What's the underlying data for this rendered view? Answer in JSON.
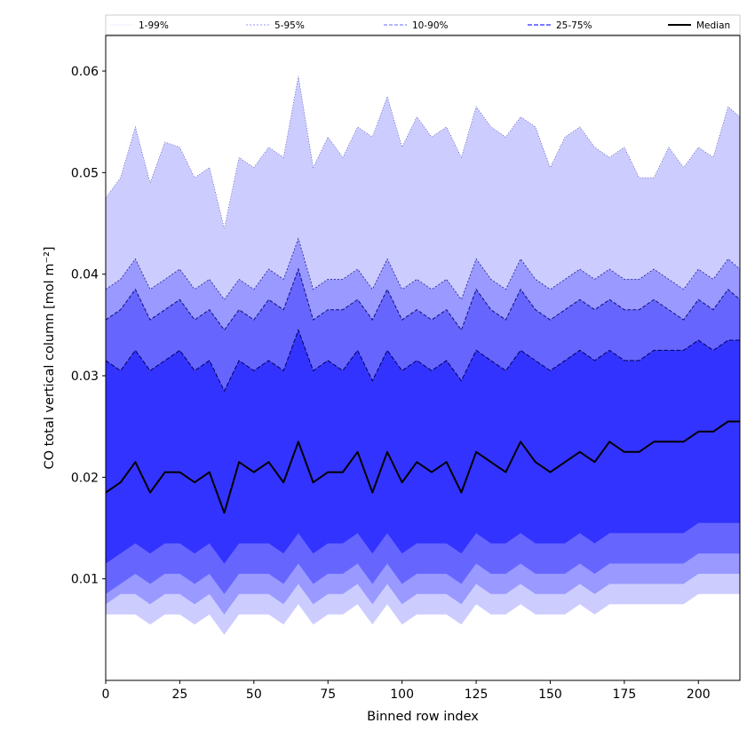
{
  "chart_data": {
    "type": "area",
    "title": "",
    "xlabel": "Binned row index",
    "ylabel": "CO total vertical column [mol m⁻²]",
    "xlim": [
      0,
      214
    ],
    "ylim": [
      0.0,
      0.0635
    ],
    "x_ticks": [
      0,
      25,
      50,
      75,
      100,
      125,
      150,
      175,
      200
    ],
    "y_ticks": [
      0.01,
      0.02,
      0.03,
      0.04,
      0.05,
      0.06
    ],
    "y_tick_labels": [
      "0.01",
      "0.02",
      "0.03",
      "0.04",
      "0.05",
      "0.06"
    ],
    "grid": false,
    "legend_position": "top, spanning full width",
    "legend": [
      {
        "label": "1-99%",
        "style": "dotted-thin",
        "color": "#c8c8ff"
      },
      {
        "label": "5-95%",
        "style": "dotted",
        "color": "#9696ff"
      },
      {
        "label": "10-90%",
        "style": "dashed",
        "color": "#6a6aff"
      },
      {
        "label": "25-75%",
        "style": "dashed",
        "color": "#2a2aff"
      },
      {
        "label": "Median",
        "style": "solid",
        "color": "#000000"
      }
    ],
    "colors": {
      "band_1_99": "#ccccff",
      "band_5_95": "#9999ff",
      "band_10_90": "#6666ff",
      "band_25_75": "#3333ff",
      "edge_upper": "#000080",
      "median": "#000000"
    },
    "x": [
      0,
      5,
      10,
      15,
      20,
      25,
      30,
      35,
      40,
      45,
      50,
      55,
      60,
      65,
      70,
      75,
      80,
      85,
      90,
      95,
      100,
      105,
      110,
      115,
      120,
      125,
      130,
      135,
      140,
      145,
      150,
      155,
      160,
      165,
      170,
      175,
      180,
      185,
      190,
      195,
      200,
      205,
      210,
      214
    ],
    "series": [
      {
        "name": "1-99%",
        "bound": "upper",
        "values": [
          0.0475,
          0.0495,
          0.0545,
          0.049,
          0.053,
          0.0525,
          0.0495,
          0.0505,
          0.0445,
          0.0515,
          0.0505,
          0.0525,
          0.0515,
          0.0595,
          0.0505,
          0.0535,
          0.0515,
          0.0545,
          0.0535,
          0.0575,
          0.0525,
          0.0555,
          0.0535,
          0.0545,
          0.0515,
          0.0565,
          0.0545,
          0.0535,
          0.0555,
          0.0545,
          0.0505,
          0.0535,
          0.0545,
          0.0525,
          0.0515,
          0.0525,
          0.0495,
          0.0495,
          0.0525,
          0.0505,
          0.0525,
          0.0515,
          0.0565,
          0.0555
        ]
      },
      {
        "name": "5-95%",
        "bound": "upper",
        "values": [
          0.0385,
          0.0395,
          0.0415,
          0.0385,
          0.0395,
          0.0405,
          0.0385,
          0.0395,
          0.0375,
          0.0395,
          0.0385,
          0.0405,
          0.0395,
          0.0435,
          0.0385,
          0.0395,
          0.0395,
          0.0405,
          0.0385,
          0.0415,
          0.0385,
          0.0395,
          0.0385,
          0.0395,
          0.0375,
          0.0415,
          0.0395,
          0.0385,
          0.0415,
          0.0395,
          0.0385,
          0.0395,
          0.0405,
          0.0395,
          0.0405,
          0.0395,
          0.0395,
          0.0405,
          0.0395,
          0.0385,
          0.0405,
          0.0395,
          0.0415,
          0.0405
        ]
      },
      {
        "name": "10-90%",
        "bound": "upper",
        "values": [
          0.0355,
          0.0365,
          0.0385,
          0.0355,
          0.0365,
          0.0375,
          0.0355,
          0.0365,
          0.0345,
          0.0365,
          0.0355,
          0.0375,
          0.0365,
          0.0405,
          0.0355,
          0.0365,
          0.0365,
          0.0375,
          0.0355,
          0.0385,
          0.0355,
          0.0365,
          0.0355,
          0.0365,
          0.0345,
          0.0385,
          0.0365,
          0.0355,
          0.0385,
          0.0365,
          0.0355,
          0.0365,
          0.0375,
          0.0365,
          0.0375,
          0.0365,
          0.0365,
          0.0375,
          0.0365,
          0.0355,
          0.0375,
          0.0365,
          0.0385,
          0.0375
        ]
      },
      {
        "name": "25-75%",
        "bound": "upper",
        "values": [
          0.0315,
          0.0305,
          0.0325,
          0.0305,
          0.0315,
          0.0325,
          0.0305,
          0.0315,
          0.0285,
          0.0315,
          0.0305,
          0.0315,
          0.0305,
          0.0345,
          0.0305,
          0.0315,
          0.0305,
          0.0325,
          0.0295,
          0.0325,
          0.0305,
          0.0315,
          0.0305,
          0.0315,
          0.0295,
          0.0325,
          0.0315,
          0.0305,
          0.0325,
          0.0315,
          0.0305,
          0.0315,
          0.0325,
          0.0315,
          0.0325,
          0.0315,
          0.0315,
          0.0325,
          0.0325,
          0.0325,
          0.0335,
          0.0325,
          0.0335,
          0.0335
        ]
      },
      {
        "name": "Median",
        "bound": "center",
        "values": [
          0.0185,
          0.0195,
          0.0215,
          0.0185,
          0.0205,
          0.0205,
          0.0195,
          0.0205,
          0.0165,
          0.0215,
          0.0205,
          0.0215,
          0.0195,
          0.0235,
          0.0195,
          0.0205,
          0.0205,
          0.0225,
          0.0185,
          0.0225,
          0.0195,
          0.0215,
          0.0205,
          0.0215,
          0.0185,
          0.0225,
          0.0215,
          0.0205,
          0.0235,
          0.0215,
          0.0205,
          0.0215,
          0.0225,
          0.0215,
          0.0235,
          0.0225,
          0.0225,
          0.0235,
          0.0235,
          0.0235,
          0.0245,
          0.0245,
          0.0255,
          0.0255
        ]
      },
      {
        "name": "25-75%",
        "bound": "lower",
        "values": [
          0.0115,
          0.0125,
          0.0135,
          0.0125,
          0.0135,
          0.0135,
          0.0125,
          0.0135,
          0.0115,
          0.0135,
          0.0135,
          0.0135,
          0.0125,
          0.0145,
          0.0125,
          0.0135,
          0.0135,
          0.0145,
          0.0125,
          0.0145,
          0.0125,
          0.0135,
          0.0135,
          0.0135,
          0.0125,
          0.0145,
          0.0135,
          0.0135,
          0.0145,
          0.0135,
          0.0135,
          0.0135,
          0.0145,
          0.0135,
          0.0145,
          0.0145,
          0.0145,
          0.0145,
          0.0145,
          0.0145,
          0.0155,
          0.0155,
          0.0155,
          0.0155
        ]
      },
      {
        "name": "10-90%",
        "bound": "lower",
        "values": [
          0.0085,
          0.0095,
          0.0105,
          0.0095,
          0.0105,
          0.0105,
          0.0095,
          0.0105,
          0.0085,
          0.0105,
          0.0105,
          0.0105,
          0.0095,
          0.0115,
          0.0095,
          0.0105,
          0.0105,
          0.0115,
          0.0095,
          0.0115,
          0.0095,
          0.0105,
          0.0105,
          0.0105,
          0.0095,
          0.0115,
          0.0105,
          0.0105,
          0.0115,
          0.0105,
          0.0105,
          0.0105,
          0.0115,
          0.0105,
          0.0115,
          0.0115,
          0.0115,
          0.0115,
          0.0115,
          0.0115,
          0.0125,
          0.0125,
          0.0125,
          0.0125
        ]
      },
      {
        "name": "5-95%",
        "bound": "lower",
        "values": [
          0.0075,
          0.0085,
          0.0085,
          0.0075,
          0.0085,
          0.0085,
          0.0075,
          0.0085,
          0.0065,
          0.0085,
          0.0085,
          0.0085,
          0.0075,
          0.0095,
          0.0075,
          0.0085,
          0.0085,
          0.0095,
          0.0075,
          0.0095,
          0.0075,
          0.0085,
          0.0085,
          0.0085,
          0.0075,
          0.0095,
          0.0085,
          0.0085,
          0.0095,
          0.0085,
          0.0085,
          0.0085,
          0.0095,
          0.0085,
          0.0095,
          0.0095,
          0.0095,
          0.0095,
          0.0095,
          0.0095,
          0.0105,
          0.0105,
          0.0105,
          0.0105
        ]
      },
      {
        "name": "1-99%",
        "bound": "lower",
        "values": [
          0.0065,
          0.0065,
          0.0065,
          0.0055,
          0.0065,
          0.0065,
          0.0055,
          0.0065,
          0.0045,
          0.0065,
          0.0065,
          0.0065,
          0.0055,
          0.0075,
          0.0055,
          0.0065,
          0.0065,
          0.0075,
          0.0055,
          0.0075,
          0.0055,
          0.0065,
          0.0065,
          0.0065,
          0.0055,
          0.0075,
          0.0065,
          0.0065,
          0.0075,
          0.0065,
          0.0065,
          0.0065,
          0.0075,
          0.0065,
          0.0075,
          0.0075,
          0.0075,
          0.0075,
          0.0075,
          0.0075,
          0.0085,
          0.0085,
          0.0085,
          0.0085
        ]
      }
    ]
  }
}
